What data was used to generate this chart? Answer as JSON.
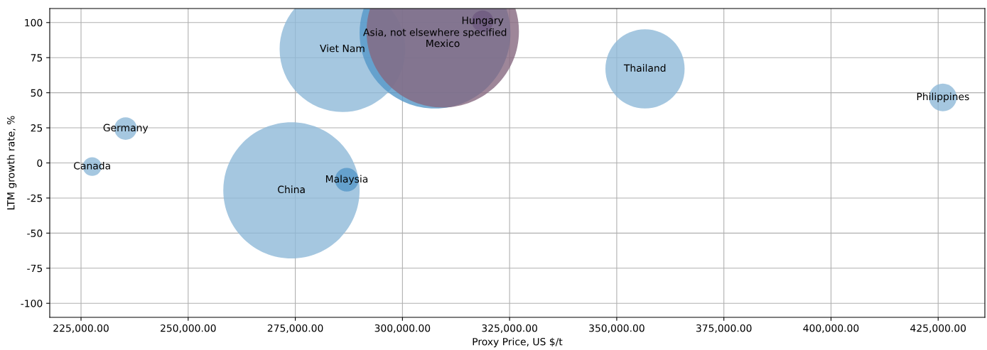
{
  "chart_data": {
    "type": "bubble",
    "xlabel": "Proxy Price, US $/t",
    "ylabel": "LTM growth rate, %",
    "x": [
      227600,
      235400,
      274100,
      287000,
      286000,
      356600,
      426100,
      307600,
      309400,
      318700
    ],
    "values": [
      -2.6,
      24.5,
      -19.5,
      -12,
      81,
      67,
      46.7,
      92.5,
      93.7,
      101
    ],
    "sizes": [
      0.015,
      0.022,
      0.8,
      0.024,
      0.68,
      0.27,
      0.033,
      0.98,
      1,
      0.02
    ],
    "colors": [
      "#8fb9d8",
      "#8fb9d8",
      "#8fb9d8",
      "#5597c8",
      "#8fb9d8",
      "#8fb9d8",
      "#8fb9d8",
      "#5597c8",
      "#86687f",
      "#6e5a80"
    ],
    "annotations": [
      {
        "text": "Canada",
        "x": 227600,
        "y": -2.6
      },
      {
        "text": "Germany",
        "x": 235400,
        "y": 24.5
      },
      {
        "text": "China",
        "x": 274100,
        "y": -19.5
      },
      {
        "text": "Malaysia",
        "x": 287000,
        "y": -12
      },
      {
        "text": "Viet Nam",
        "x": 286000,
        "y": 81
      },
      {
        "text": "Thailand",
        "x": 356600,
        "y": 67
      },
      {
        "text": "Philippines",
        "x": 426100,
        "y": 46.7
      },
      {
        "text": "Asia, not elsewhere specified",
        "x": 307600,
        "y": 92.5
      },
      {
        "text": "Mexico",
        "x": 309400,
        "y": 93.7
      },
      {
        "text": "Hungary",
        "x": 318700,
        "y": 101
      }
    ],
    "xlim": [
      217700,
      435900
    ],
    "ylim": [
      -110,
      110
    ],
    "xticks": [
      {
        "value": 225000,
        "label": "225,000.00"
      },
      {
        "value": 250000,
        "label": "250,000.00"
      },
      {
        "value": 275000,
        "label": "275,000.00"
      },
      {
        "value": 300000,
        "label": "300,000.00"
      },
      {
        "value": 325000,
        "label": "325,000.00"
      },
      {
        "value": 350000,
        "label": "350,000.00"
      },
      {
        "value": 375000,
        "label": "375,000.00"
      },
      {
        "value": 400000,
        "label": "400,000.00"
      },
      {
        "value": 425000,
        "label": "425,000.00"
      }
    ],
    "yticks": [
      -100,
      -75,
      -50,
      -25,
      0,
      25,
      50,
      75,
      100
    ],
    "grid": true
  }
}
